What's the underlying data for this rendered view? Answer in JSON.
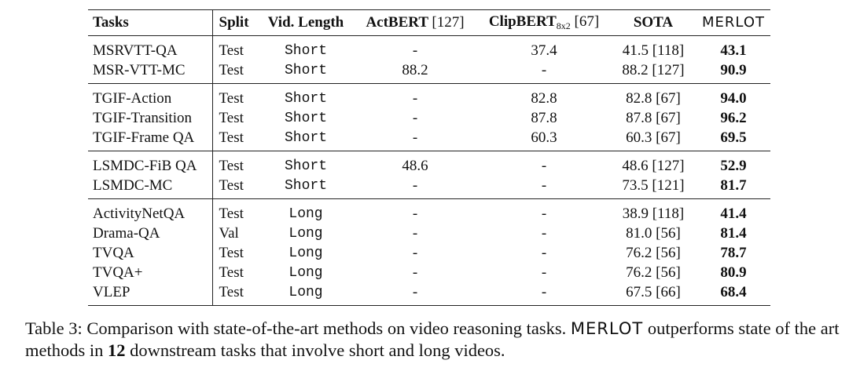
{
  "table": {
    "header": [
      {
        "name": "Tasks"
      },
      {
        "name": "Split"
      },
      {
        "name": "Vid. Length"
      },
      {
        "name": "ActBERT",
        "ref": "[127]"
      },
      {
        "name": "ClipBERT",
        "sub": "8x2",
        "ref": "[67]"
      },
      {
        "name": "SOTA"
      },
      {
        "name": "MERLOT"
      }
    ],
    "groups": [
      [
        [
          "MSRVTT-QA",
          "Test",
          "Short",
          "-",
          "37.4",
          "41.5 [118]",
          "43.1"
        ],
        [
          "MSR-VTT-MC",
          "Test",
          "Short",
          "88.2",
          "-",
          "88.2 [127]",
          "90.9"
        ]
      ],
      [
        [
          "TGIF-Action",
          "Test",
          "Short",
          "-",
          "82.8",
          "82.8 [67]",
          "94.0"
        ],
        [
          "TGIF-Transition",
          "Test",
          "Short",
          "-",
          "87.8",
          "87.8 [67]",
          "96.2"
        ],
        [
          "TGIF-Frame QA",
          "Test",
          "Short",
          "-",
          "60.3",
          "60.3 [67]",
          "69.5"
        ]
      ],
      [
        [
          "LSMDC-FiB QA",
          "Test",
          "Short",
          "48.6",
          "-",
          "48.6 [127]",
          "52.9"
        ],
        [
          "LSMDC-MC",
          "Test",
          "Short",
          "-",
          "-",
          "73.5 [121]",
          "81.7"
        ]
      ],
      [
        [
          "ActivityNetQA",
          "Test",
          "Long",
          "-",
          "-",
          "38.9 [118]",
          "41.4"
        ],
        [
          "Drama-QA",
          "Val",
          "Long",
          "-",
          "-",
          "81.0 [56]",
          "81.4"
        ],
        [
          "TVQA",
          "Test",
          "Long",
          "-",
          "-",
          "76.2 [56]",
          "78.7"
        ],
        [
          "TVQA+",
          "Test",
          "Long",
          "-",
          "-",
          "76.2 [56]",
          "80.9"
        ],
        [
          "VLEP",
          "Test",
          "Long",
          "-",
          "-",
          "67.5 [66]",
          "68.4"
        ]
      ]
    ]
  },
  "caption": {
    "label": "Table 3:",
    "text1": "Comparison with state-of-the-art methods on video reasoning tasks.",
    "model": "MERLOT",
    "text2": "outperforms state of the art methods in",
    "count": "12",
    "text3": "downstream tasks that involve short and long videos."
  }
}
